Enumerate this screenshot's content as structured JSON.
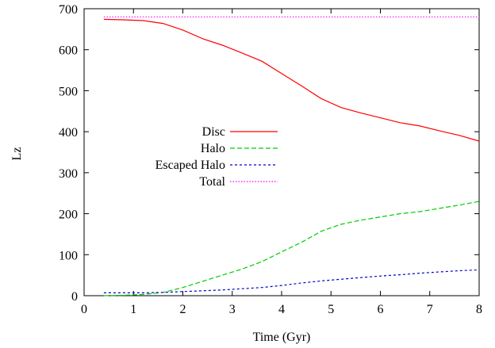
{
  "chart_data": {
    "type": "line",
    "xlabel": "Time (Gyr)",
    "ylabel": "Lz",
    "xlim": [
      0,
      8
    ],
    "ylim": [
      0,
      700
    ],
    "xticks": [
      0,
      1,
      2,
      3,
      4,
      5,
      6,
      7,
      8
    ],
    "yticks": [
      0,
      100,
      200,
      300,
      400,
      500,
      600,
      700
    ],
    "grid": false,
    "legend_position": "center-left",
    "series": [
      {
        "name": "Disc",
        "color": "#ff0000",
        "dash": "solid",
        "x": [
          0.4,
          0.8,
          1.2,
          1.6,
          2.0,
          2.4,
          2.8,
          3.2,
          3.6,
          4.0,
          4.4,
          4.8,
          5.2,
          5.6,
          6.0,
          6.4,
          6.8,
          7.2,
          7.6,
          8.0
        ],
        "y": [
          674,
          673,
          671,
          664,
          648,
          627,
          611,
          592,
          572,
          542,
          512,
          481,
          459,
          446,
          434,
          422,
          414,
          402,
          391,
          377
        ]
      },
      {
        "name": "Halo",
        "color": "#00cc00",
        "dash": "dashed",
        "x": [
          0.4,
          0.8,
          1.2,
          1.6,
          2.0,
          2.4,
          2.8,
          3.2,
          3.6,
          4.0,
          4.4,
          4.8,
          5.2,
          5.6,
          6.0,
          6.4,
          6.8,
          7.2,
          7.6,
          8.0
        ],
        "y": [
          0,
          1,
          3,
          8,
          20,
          35,
          50,
          65,
          83,
          107,
          130,
          157,
          174,
          184,
          192,
          200,
          205,
          213,
          221,
          230
        ]
      },
      {
        "name": "Escaped Halo",
        "color": "#0000cc",
        "dash": "dotdash",
        "x": [
          0.4,
          0.8,
          1.2,
          1.6,
          2.0,
          2.4,
          2.8,
          3.2,
          3.6,
          4.0,
          4.4,
          4.8,
          5.2,
          5.6,
          6.0,
          6.4,
          6.8,
          7.2,
          7.6,
          8.0
        ],
        "y": [
          7,
          7,
          7,
          8,
          10,
          12,
          14,
          17,
          20,
          25,
          31,
          36,
          40,
          44,
          48,
          51,
          55,
          58,
          61,
          63
        ]
      },
      {
        "name": "Total",
        "color": "#ff00ff",
        "dash": "dotted",
        "x": [
          0.4,
          8.0
        ],
        "y": [
          680,
          680
        ]
      }
    ]
  }
}
